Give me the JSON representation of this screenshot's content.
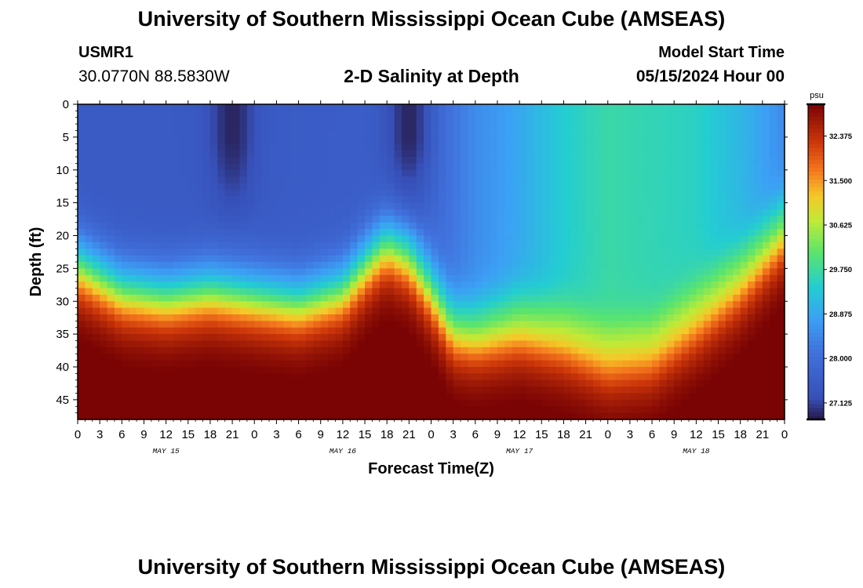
{
  "header": {
    "title": "University of Southern Mississippi Ocean Cube (AMSEAS)",
    "station": "USMR1",
    "coordinates": "30.0770N  88.5830W",
    "subtitle": "2-D Salinity at Depth",
    "model_label": "Model Start Time",
    "model_time": "05/15/2024 Hour 00"
  },
  "footer": {
    "title": "University of Southern Mississippi Ocean Cube (AMSEAS)"
  },
  "chart_data": {
    "type": "heatmap",
    "title": "2-D Salinity at Depth",
    "xlabel": "Forecast Time(Z)",
    "ylabel": "Depth (ft)",
    "xlim": [
      0,
      96
    ],
    "ylim": [
      48,
      0
    ],
    "x_ticks": [
      "0",
      "3",
      "6",
      "9",
      "12",
      "15",
      "18",
      "21",
      "0",
      "3",
      "6",
      "9",
      "12",
      "15",
      "18",
      "21",
      "0",
      "3",
      "6",
      "9",
      "12",
      "15",
      "18",
      "21",
      "0",
      "3",
      "6",
      "9",
      "12",
      "15",
      "18",
      "21",
      "0"
    ],
    "y_ticks": [
      0,
      5,
      10,
      15,
      20,
      25,
      30,
      35,
      40,
      45
    ],
    "day_labels": [
      {
        "label": "MAY 15",
        "hour": 12
      },
      {
        "label": "MAY 16",
        "hour": 36
      },
      {
        "label": "MAY 17",
        "hour": 60
      },
      {
        "label": "MAY 18",
        "hour": 84
      }
    ],
    "colorbar": {
      "unit": "psu",
      "min": 26.8,
      "max": 33.0,
      "ticks": [
        32.375,
        31.5,
        30.625,
        29.75,
        28.875,
        28.0,
        27.125
      ],
      "tick_labels": [
        "32.375",
        "31.500",
        "30.625",
        "29.750",
        "28.875",
        "28.000",
        "27.125"
      ]
    },
    "interface_depth_ft": [
      {
        "hour": 0,
        "depth": 25
      },
      {
        "hour": 6,
        "depth": 29
      },
      {
        "hour": 12,
        "depth": 30
      },
      {
        "hour": 18,
        "depth": 29
      },
      {
        "hour": 24,
        "depth": 30
      },
      {
        "hour": 30,
        "depth": 31
      },
      {
        "hour": 36,
        "depth": 29
      },
      {
        "hour": 40,
        "depth": 24
      },
      {
        "hour": 42,
        "depth": 22
      },
      {
        "hour": 45,
        "depth": 24
      },
      {
        "hour": 48,
        "depth": 29
      },
      {
        "hour": 51,
        "depth": 35
      },
      {
        "hour": 54,
        "depth": 36
      },
      {
        "hour": 60,
        "depth": 35
      },
      {
        "hour": 66,
        "depth": 37
      },
      {
        "hour": 72,
        "depth": 40
      },
      {
        "hour": 78,
        "depth": 39
      },
      {
        "hour": 84,
        "depth": 34
      },
      {
        "hour": 90,
        "depth": 28
      },
      {
        "hour": 96,
        "depth": 20
      }
    ],
    "surface_salinity_psu": [
      {
        "hour": 0,
        "value": 27.5
      },
      {
        "hour": 20,
        "value": 27.5
      },
      {
        "hour": 42,
        "value": 27.6
      },
      {
        "hour": 48,
        "value": 27.9
      },
      {
        "hour": 54,
        "value": 28.5
      },
      {
        "hour": 60,
        "value": 28.9
      },
      {
        "hour": 66,
        "value": 29.4
      },
      {
        "hour": 72,
        "value": 29.7
      },
      {
        "hour": 84,
        "value": 29.5
      },
      {
        "hour": 90,
        "value": 29.1
      },
      {
        "hour": 96,
        "value": 28.5
      }
    ],
    "deep_salinity_psu": 33.0,
    "low_salinity_plumes": [
      {
        "hour": 21,
        "depth_top": 0,
        "depth_bottom": 15,
        "min_psu": 26.9
      },
      {
        "hour": 45,
        "depth_top": 0,
        "depth_bottom": 15,
        "min_psu": 26.9
      }
    ]
  }
}
